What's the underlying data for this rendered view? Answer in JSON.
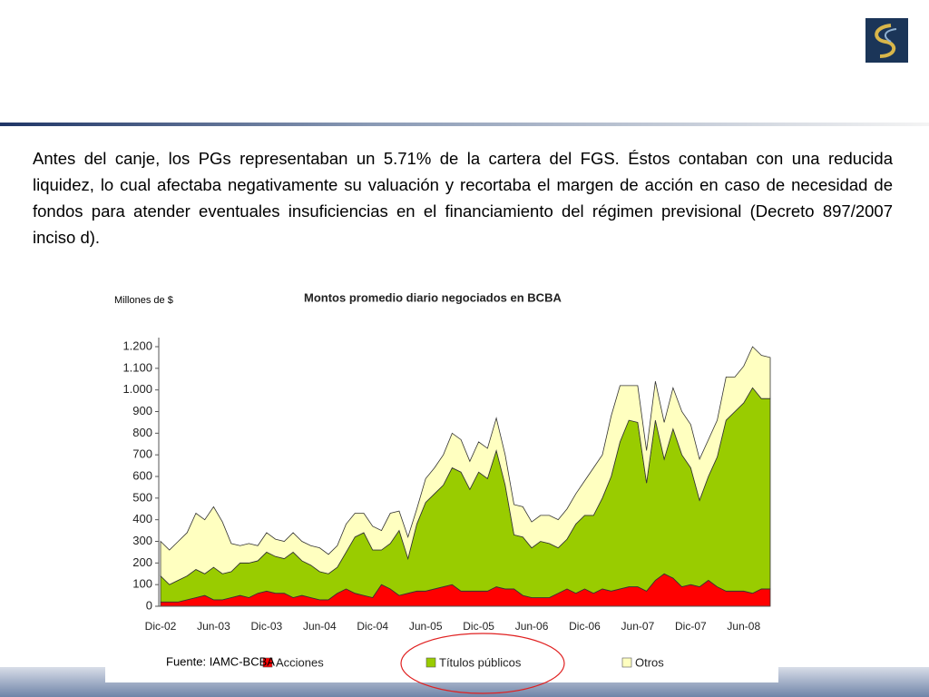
{
  "text": "Antes del canje, los PGs representaban un 5.71% de la cartera del FGS. Éstos contaban con una reducida liquidez, lo cual afectaba negativamente su valuación y recortaba el margen de acción en caso de necesidad de fondos para atender eventuales insuficiencias en el financiamiento del régimen previsional (Decreto 897/2007 inciso d).",
  "source": "Fuente: IAMC-BCBA",
  "chart_data": {
    "type": "stacked_area",
    "title": "Montos promedio diario negociados en BCBA",
    "y_label": "Millones de $",
    "categories": [
      "Dic-02",
      null,
      null,
      null,
      null,
      null,
      "Jun-03",
      null,
      null,
      null,
      null,
      null,
      "Dic-03",
      null,
      null,
      null,
      null,
      null,
      "Jun-04",
      null,
      null,
      null,
      null,
      null,
      "Dic-04",
      null,
      null,
      null,
      null,
      null,
      "Jun-05",
      null,
      null,
      null,
      null,
      null,
      "Dic-05",
      null,
      null,
      null,
      null,
      null,
      "Jun-06",
      null,
      null,
      null,
      null,
      null,
      "Dic-06",
      null,
      null,
      null,
      null,
      null,
      "Jun-07",
      null,
      null,
      null,
      null,
      null,
      "Dic-07",
      null,
      null,
      null,
      null,
      null,
      "Jun-08",
      null,
      null,
      null
    ],
    "series": [
      {
        "name": "Acciones",
        "color": "#ff0000",
        "values": [
          20,
          20,
          20,
          30,
          40,
          50,
          30,
          30,
          40,
          50,
          40,
          60,
          70,
          60,
          60,
          40,
          50,
          40,
          30,
          30,
          60,
          80,
          60,
          50,
          40,
          100,
          80,
          50,
          60,
          70,
          70,
          80,
          90,
          100,
          70,
          70,
          70,
          70,
          90,
          80,
          80,
          50,
          40,
          40,
          40,
          60,
          80,
          60,
          80,
          60,
          80,
          70,
          80,
          90,
          90,
          70,
          120,
          150,
          130,
          90,
          100,
          90,
          120,
          90,
          70,
          70,
          70,
          60,
          80,
          80
        ]
      },
      {
        "name": "Títulos públicos",
        "color": "#99cc00",
        "values": [
          120,
          80,
          100,
          110,
          130,
          100,
          150,
          120,
          120,
          150,
          160,
          150,
          180,
          170,
          160,
          210,
          160,
          150,
          130,
          120,
          120,
          170,
          260,
          290,
          220,
          160,
          210,
          300,
          160,
          310,
          410,
          440,
          470,
          540,
          550,
          470,
          550,
          520,
          630,
          480,
          250,
          270,
          230,
          260,
          250,
          210,
          230,
          320,
          340,
          360,
          420,
          530,
          680,
          770,
          760,
          500,
          740,
          530,
          690,
          610,
          540,
          400,
          480,
          600,
          790,
          830,
          870,
          950,
          880,
          880
        ]
      },
      {
        "name": "Otros",
        "color": "#ffffc0",
        "values": [
          160,
          160,
          180,
          200,
          260,
          250,
          280,
          240,
          130,
          80,
          90,
          70,
          90,
          80,
          80,
          90,
          90,
          90,
          110,
          90,
          100,
          130,
          110,
          90,
          110,
          90,
          140,
          90,
          100,
          70,
          110,
          120,
          140,
          160,
          150,
          130,
          140,
          140,
          150,
          140,
          140,
          140,
          120,
          120,
          130,
          130,
          140,
          140,
          160,
          220,
          200,
          280,
          260,
          160,
          170,
          150,
          180,
          170,
          190,
          200,
          200,
          190,
          170,
          170,
          200,
          160,
          170,
          190,
          200,
          190
        ]
      }
    ],
    "ylim": [
      0,
      1200
    ],
    "yticks": [
      0,
      100,
      200,
      300,
      400,
      500,
      600,
      700,
      800,
      900,
      {
        "value": 1000,
        "label": "1.000"
      },
      {
        "value": 1100,
        "label": "1.100"
      },
      {
        "value": 1200,
        "label": "1.200"
      }
    ]
  }
}
